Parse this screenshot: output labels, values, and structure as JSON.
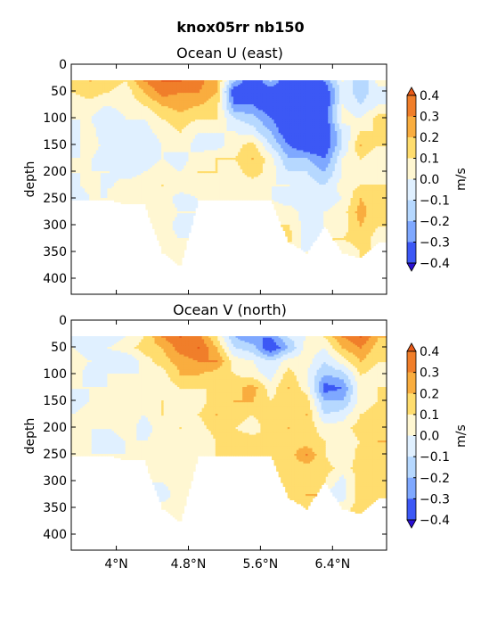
{
  "figure": {
    "suptitle": "knox05rr nb150"
  },
  "colors": {
    "levels": [
      -0.4,
      -0.3,
      -0.2,
      -0.1,
      0.0,
      0.1,
      0.2,
      0.3,
      0.4
    ],
    "bins": [
      "#2a0fd4",
      "#3c58f5",
      "#7fa8ff",
      "#b6d8ff",
      "#e0f0ff",
      "#fff7d2",
      "#ffdd6e",
      "#f9ad3f",
      "#f07e2a",
      "#e85a18"
    ],
    "under": "#2a0fd4",
    "over": "#e85a18"
  },
  "colorbar": {
    "label": "m/s",
    "ticks": [
      "0.4",
      "0.3",
      "0.2",
      "0.1",
      "0.0",
      "−0.1",
      "−0.2",
      "−0.3",
      "−0.4"
    ]
  },
  "chart_data": [
    {
      "type": "heatmap",
      "title": "Ocean U (east)",
      "ylabel": "depth",
      "xlabel": "",
      "x_range_deg_N": [
        3.5,
        7.0
      ],
      "y_range_depth": [
        0,
        430
      ],
      "y_inverted": true,
      "yticks": [
        "0",
        "50",
        "100",
        "150",
        "200",
        "250",
        "300",
        "350",
        "400"
      ],
      "xtick_labels_shown": false,
      "depth_levels": [
        30,
        50,
        75,
        100,
        125,
        150,
        175,
        200,
        225,
        250,
        275,
        300,
        325,
        350,
        375
      ],
      "columns": [
        {
          "x": 3.5,
          "max_depth": 250,
          "values": [
            0.15,
            0.1,
            0.05,
            0.0,
            -0.05,
            -0.05,
            0.0,
            0.0,
            -0.02,
            -0.05,
            null,
            null,
            null,
            null,
            null
          ]
        },
        {
          "x": 3.7,
          "max_depth": 250,
          "values": [
            0.2,
            0.15,
            0.05,
            0.0,
            0.05,
            0.05,
            0.0,
            0.0,
            0.02,
            0.0,
            null,
            null,
            null,
            null,
            null
          ]
        },
        {
          "x": 3.9,
          "max_depth": 250,
          "values": [
            0.15,
            0.1,
            0.0,
            -0.1,
            -0.1,
            -0.05,
            -0.05,
            0.0,
            -0.02,
            null,
            null,
            null,
            null,
            null,
            null
          ]
        },
        {
          "x": 4.1,
          "max_depth": 260,
          "values": [
            0.1,
            0.05,
            0.05,
            0.0,
            -0.05,
            -0.1,
            -0.05,
            -0.05,
            0.05,
            0.05,
            null,
            null,
            null,
            null,
            null
          ]
        },
        {
          "x": 4.3,
          "max_depth": 260,
          "values": [
            0.3,
            0.2,
            0.1,
            0.0,
            -0.05,
            -0.1,
            -0.05,
            0.0,
            0.05,
            0.05,
            null,
            null,
            null,
            null,
            null
          ]
        },
        {
          "x": 4.5,
          "max_depth": 350,
          "values": [
            0.4,
            0.35,
            0.2,
            0.1,
            0.05,
            0.0,
            0.0,
            0.05,
            0.1,
            0.05,
            0.05,
            0.05,
            0.05,
            null,
            null
          ]
        },
        {
          "x": 4.7,
          "max_depth": 375,
          "values": [
            0.4,
            0.3,
            0.25,
            0.15,
            0.1,
            0.05,
            -0.05,
            0.0,
            0.05,
            -0.05,
            0.0,
            -0.05,
            0.0,
            0.0,
            null
          ]
        },
        {
          "x": 4.9,
          "max_depth": 250,
          "values": [
            0.35,
            0.3,
            0.2,
            0.1,
            0.0,
            -0.05,
            0.05,
            0.1,
            0.05,
            0.0,
            null,
            null,
            null,
            null,
            null
          ]
        },
        {
          "x": 5.1,
          "max_depth": 250,
          "values": [
            0.2,
            0.2,
            0.15,
            0.1,
            0.0,
            -0.05,
            0.1,
            0.1,
            0.0,
            0.0,
            null,
            null,
            null,
            null,
            null
          ]
        },
        {
          "x": 5.3,
          "max_depth": 250,
          "values": [
            -0.2,
            -0.4,
            -0.3,
            -0.1,
            0.0,
            0.05,
            0.1,
            0.05,
            0.0,
            0.0,
            null,
            null,
            null,
            null,
            null
          ]
        },
        {
          "x": 5.5,
          "max_depth": 250,
          "values": [
            -0.4,
            -0.4,
            -0.3,
            -0.15,
            -0.05,
            0.15,
            0.2,
            0.15,
            0.05,
            0.0,
            null,
            null,
            null,
            null,
            null
          ]
        },
        {
          "x": 5.7,
          "max_depth": 250,
          "values": [
            -0.2,
            -0.4,
            -0.4,
            -0.3,
            -0.2,
            -0.1,
            0.05,
            0.05,
            0.0,
            0.0,
            null,
            null,
            null,
            null,
            null
          ]
        },
        {
          "x": 5.9,
          "max_depth": 330,
          "values": [
            -0.4,
            -0.4,
            -0.4,
            -0.4,
            -0.4,
            -0.3,
            -0.2,
            -0.1,
            0.0,
            -0.05,
            0.05,
            0.1,
            0.15,
            null,
            null
          ]
        },
        {
          "x": 6.1,
          "max_depth": 350,
          "values": [
            -0.4,
            -0.4,
            -0.4,
            -0.4,
            -0.4,
            -0.4,
            -0.2,
            -0.1,
            -0.05,
            -0.05,
            -0.05,
            -0.05,
            -0.05,
            0.0,
            null
          ]
        },
        {
          "x": 6.3,
          "max_depth": 300,
          "values": [
            -0.3,
            -0.4,
            -0.4,
            -0.4,
            -0.4,
            -0.4,
            -0.3,
            -0.2,
            -0.1,
            -0.05,
            0.0,
            0.0,
            null,
            null,
            null
          ]
        },
        {
          "x": 6.5,
          "max_depth": 350,
          "values": [
            0.0,
            -0.05,
            0.0,
            0.05,
            -0.1,
            -0.1,
            0.0,
            0.0,
            0.05,
            0.0,
            0.05,
            0.05,
            0.1,
            0.0,
            null
          ]
        },
        {
          "x": 6.7,
          "max_depth": 360,
          "values": [
            -0.2,
            -0.15,
            -0.1,
            0.0,
            0.1,
            0.2,
            0.1,
            0.0,
            0.1,
            0.2,
            0.25,
            0.2,
            0.15,
            0.1,
            null
          ]
        },
        {
          "x": 6.9,
          "max_depth": 330,
          "values": [
            0.05,
            -0.05,
            0.0,
            0.15,
            0.1,
            0.1,
            0.0,
            0.05,
            0.1,
            0.15,
            0.1,
            0.1,
            0.05,
            null,
            null
          ]
        }
      ]
    },
    {
      "type": "heatmap",
      "title": "Ocean V (north)",
      "ylabel": "depth",
      "xlabel": "",
      "x_range_deg_N": [
        3.5,
        7.0
      ],
      "y_range_depth": [
        0,
        430
      ],
      "y_inverted": true,
      "yticks": [
        "0",
        "50",
        "100",
        "150",
        "200",
        "250",
        "300",
        "350",
        "400"
      ],
      "xtick_labels_shown": true,
      "xticks": [
        {
          "value": 4.0,
          "label": "4°N"
        },
        {
          "value": 4.8,
          "label": "4.8°N"
        },
        {
          "value": 5.6,
          "label": "5.6°N"
        },
        {
          "value": 6.4,
          "label": "6.4°N"
        }
      ],
      "depth_levels": [
        30,
        50,
        75,
        100,
        125,
        150,
        175,
        200,
        225,
        250,
        275,
        300,
        325,
        350,
        375
      ],
      "columns": [
        {
          "x": 3.5,
          "max_depth": 250,
          "values": [
            -0.05,
            0.0,
            0.05,
            0.05,
            0.0,
            -0.05,
            0.0,
            0.05,
            0.05,
            0.0,
            null,
            null,
            null,
            null,
            null
          ]
        },
        {
          "x": 3.7,
          "max_depth": 250,
          "values": [
            -0.1,
            -0.05,
            0.0,
            -0.05,
            0.0,
            0.0,
            0.05,
            0.0,
            0.0,
            0.0,
            null,
            null,
            null,
            null,
            null
          ]
        },
        {
          "x": 3.9,
          "max_depth": 250,
          "values": [
            -0.05,
            0.0,
            -0.05,
            0.0,
            0.0,
            0.05,
            0.0,
            0.0,
            -0.05,
            null,
            null,
            null,
            null,
            null,
            null
          ]
        },
        {
          "x": 4.1,
          "max_depth": 260,
          "values": [
            0.0,
            0.05,
            -0.1,
            0.0,
            0.05,
            0.0,
            0.05,
            0.05,
            0.0,
            0.0,
            null,
            null,
            null,
            null,
            null
          ]
        },
        {
          "x": 4.3,
          "max_depth": 260,
          "values": [
            0.1,
            0.15,
            0.05,
            0.0,
            0.0,
            0.05,
            0.0,
            -0.05,
            0.0,
            0.05,
            null,
            null,
            null,
            null,
            null
          ]
        },
        {
          "x": 4.5,
          "max_depth": 350,
          "values": [
            0.3,
            0.2,
            0.15,
            0.05,
            0.05,
            0.1,
            0.1,
            0.05,
            0.05,
            0.05,
            0.05,
            0.0,
            -0.05,
            null,
            null
          ]
        },
        {
          "x": 4.7,
          "max_depth": 375,
          "values": [
            0.4,
            0.35,
            0.25,
            0.2,
            0.1,
            0.05,
            0.05,
            0.1,
            0.05,
            0.05,
            0.05,
            0.05,
            0.05,
            0.05,
            null
          ]
        },
        {
          "x": 4.9,
          "max_depth": 250,
          "values": [
            0.35,
            0.4,
            0.3,
            0.2,
            0.1,
            0.05,
            0.1,
            0.05,
            0.0,
            0.0,
            null,
            null,
            null,
            null,
            null
          ]
        },
        {
          "x": 5.1,
          "max_depth": 250,
          "values": [
            0.1,
            0.2,
            0.3,
            0.15,
            0.1,
            0.15,
            0.2,
            0.15,
            0.1,
            0.1,
            null,
            null,
            null,
            null,
            null
          ]
        },
        {
          "x": 5.3,
          "max_depth": 250,
          "values": [
            -0.2,
            -0.1,
            0.05,
            0.1,
            0.15,
            0.2,
            0.15,
            0.1,
            0.15,
            0.1,
            null,
            null,
            null,
            null,
            null
          ]
        },
        {
          "x": 5.5,
          "max_depth": 250,
          "values": [
            -0.3,
            -0.15,
            0.0,
            0.05,
            0.25,
            0.2,
            0.1,
            0.05,
            0.15,
            0.15,
            null,
            null,
            null,
            null,
            null
          ]
        },
        {
          "x": 5.7,
          "max_depth": 250,
          "values": [
            -0.3,
            -0.4,
            -0.1,
            -0.05,
            0.05,
            0.1,
            0.15,
            0.15,
            0.1,
            0.1,
            null,
            null,
            null,
            null,
            null
          ]
        },
        {
          "x": 5.9,
          "max_depth": 330,
          "values": [
            -0.1,
            -0.2,
            0.05,
            0.15,
            0.2,
            0.15,
            0.15,
            0.2,
            0.15,
            0.15,
            0.15,
            0.1,
            0.15,
            null,
            null
          ]
        },
        {
          "x": 6.1,
          "max_depth": 350,
          "values": [
            0.0,
            0.05,
            0.05,
            0.0,
            0.05,
            0.15,
            0.2,
            0.15,
            0.15,
            0.3,
            0.15,
            0.15,
            0.2,
            0.15,
            null
          ]
        },
        {
          "x": 6.3,
          "max_depth": 300,
          "values": [
            0.1,
            0.0,
            -0.1,
            -0.2,
            -0.35,
            -0.2,
            -0.1,
            0.05,
            0.1,
            0.1,
            0.15,
            0.1,
            null,
            null,
            null
          ]
        },
        {
          "x": 6.5,
          "max_depth": 350,
          "values": [
            0.3,
            0.2,
            0.05,
            -0.15,
            -0.3,
            -0.2,
            -0.05,
            0.05,
            0.05,
            0.0,
            0.05,
            -0.05,
            -0.05,
            0.05,
            null
          ]
        },
        {
          "x": 6.7,
          "max_depth": 360,
          "values": [
            0.4,
            0.3,
            0.2,
            0.1,
            0.05,
            0.05,
            0.1,
            0.15,
            0.1,
            0.15,
            0.15,
            0.15,
            0.15,
            0.15,
            null
          ]
        },
        {
          "x": 6.9,
          "max_depth": 330,
          "values": [
            0.2,
            0.15,
            0.1,
            0.05,
            0.1,
            0.1,
            0.15,
            0.15,
            0.2,
            0.15,
            0.15,
            0.1,
            0.1,
            null,
            null
          ]
        }
      ]
    }
  ]
}
